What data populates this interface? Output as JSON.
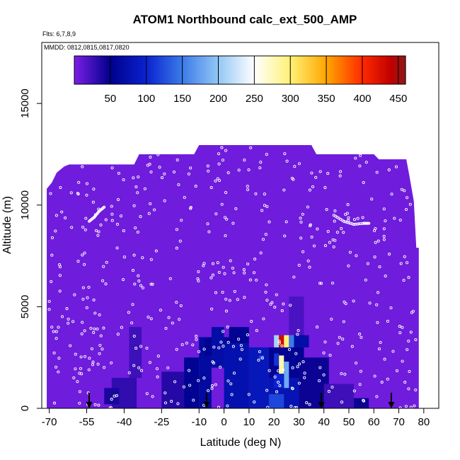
{
  "chart_data": {
    "type": "heatmap",
    "title": "ATOM1 Northbound calc_ext_500_AMP",
    "flights_note": "Flts: 6,7,8,9",
    "dates_note": "MMDD: 0812,0815,0817,0820",
    "xlabel": "Latitude (deg N)",
    "ylabel": "Altitude (m)",
    "xlim": [
      -73,
      86
    ],
    "ylim": [
      0,
      18000
    ],
    "x_ticks": [
      {
        "value": -70,
        "label": "-70"
      },
      {
        "value": -55,
        "label": "-55"
      },
      {
        "value": -40,
        "label": "-40"
      },
      {
        "value": -25,
        "label": "-25"
      },
      {
        "value": -10,
        "label": "-10"
      },
      {
        "value": 0,
        "label": "0"
      },
      {
        "value": 10,
        "label": "10"
      },
      {
        "value": 20,
        "label": "20"
      },
      {
        "value": 30,
        "label": "30"
      },
      {
        "value": 40,
        "label": "40"
      },
      {
        "value": 50,
        "label": "50"
      },
      {
        "value": 60,
        "label": "60"
      },
      {
        "value": 70,
        "label": "70"
      },
      {
        "value": 80,
        "label": "80"
      }
    ],
    "y_ticks": [
      {
        "value": 0,
        "label": "0"
      },
      {
        "value": 5000,
        "label": "5000"
      },
      {
        "value": 10000,
        "label": "10000"
      },
      {
        "value": 15000,
        "label": "15000"
      }
    ],
    "colorbar": {
      "min": 0,
      "max": 460,
      "ticks": [
        {
          "value": 50,
          "label": "50"
        },
        {
          "value": 100,
          "label": "100"
        },
        {
          "value": 150,
          "label": "150"
        },
        {
          "value": 200,
          "label": "200"
        },
        {
          "value": 250,
          "label": "250"
        },
        {
          "value": 300,
          "label": "300"
        },
        {
          "value": 350,
          "label": "350"
        },
        {
          "value": 400,
          "label": "400"
        },
        {
          "value": 450,
          "label": "450"
        }
      ],
      "stops": [
        {
          "value": 0,
          "color": "#7b1fe6"
        },
        {
          "value": 50,
          "color": "#00008b"
        },
        {
          "value": 100,
          "color": "#0a22d0"
        },
        {
          "value": 150,
          "color": "#3b7be8"
        },
        {
          "value": 200,
          "color": "#93c7f5"
        },
        {
          "value": 250,
          "color": "#ffffff"
        },
        {
          "value": 300,
          "color": "#fff176"
        },
        {
          "value": 350,
          "color": "#ffa600"
        },
        {
          "value": 400,
          "color": "#ff2a00"
        },
        {
          "value": 440,
          "color": "#c00000"
        },
        {
          "value": 460,
          "color": "#8b1a1a"
        }
      ]
    },
    "background_value": 5,
    "data_ceiling": [
      {
        "lat": -71,
        "alt": 10800
      },
      {
        "lat": -69,
        "alt": 11100
      },
      {
        "lat": -67,
        "alt": 11600
      },
      {
        "lat": -64,
        "alt": 11900
      },
      {
        "lat": -62,
        "alt": 12000
      },
      {
        "lat": -36,
        "alt": 12000
      },
      {
        "lat": -34,
        "alt": 12500
      },
      {
        "lat": -12,
        "alt": 12500
      },
      {
        "lat": -10,
        "alt": 12950
      },
      {
        "lat": 35,
        "alt": 12950
      },
      {
        "lat": 37,
        "alt": 12500
      },
      {
        "lat": 60,
        "alt": 12500
      },
      {
        "lat": 62,
        "alt": 12250
      },
      {
        "lat": 73,
        "alt": 12250
      },
      {
        "lat": 74,
        "alt": 11600
      },
      {
        "lat": 76,
        "alt": 10200
      },
      {
        "lat": 77,
        "alt": 7900
      },
      {
        "lat": 78,
        "alt": 7900
      }
    ],
    "cells": [
      {
        "lat": [
          -38,
          -33
        ],
        "alt": [
          1500,
          4000
        ],
        "value": 25
      },
      {
        "lat": [
          -45,
          -35
        ],
        "alt": [
          0,
          1500
        ],
        "value": 30
      },
      {
        "lat": [
          -48,
          -42
        ],
        "alt": [
          200,
          1000
        ],
        "value": 40
      },
      {
        "lat": [
          -25,
          -16
        ],
        "alt": [
          0,
          1800
        ],
        "value": 35
      },
      {
        "lat": [
          -16,
          -10
        ],
        "alt": [
          0,
          2500
        ],
        "value": 55
      },
      {
        "lat": [
          -10,
          -5
        ],
        "alt": [
          0,
          3500
        ],
        "value": 65
      },
      {
        "lat": [
          -8,
          2
        ],
        "alt": [
          2600,
          3500
        ],
        "value": 55
      },
      {
        "lat": [
          -5,
          0
        ],
        "alt": [
          2000,
          4000
        ],
        "value": 70
      },
      {
        "lat": [
          0,
          10
        ],
        "alt": [
          0,
          3200
        ],
        "value": 75
      },
      {
        "lat": [
          2,
          10
        ],
        "alt": [
          3200,
          4000
        ],
        "value": 55
      },
      {
        "lat": [
          10,
          18
        ],
        "alt": [
          0,
          3000
        ],
        "value": 85
      },
      {
        "lat": [
          18,
          30
        ],
        "alt": [
          0,
          1500
        ],
        "value": 80
      },
      {
        "lat": [
          18,
          32
        ],
        "alt": [
          1500,
          3000
        ],
        "value": 55
      },
      {
        "lat": [
          26,
          32
        ],
        "alt": [
          3000,
          5500
        ],
        "value": 20
      },
      {
        "lat": [
          30,
          42
        ],
        "alt": [
          0,
          2500
        ],
        "value": 45
      },
      {
        "lat": [
          28,
          34
        ],
        "alt": [
          3000,
          3600
        ],
        "value": 70
      },
      {
        "lat": [
          40,
          52
        ],
        "alt": [
          0,
          1200
        ],
        "value": 25
      },
      {
        "lat": [
          52,
          58
        ],
        "alt": [
          0,
          500
        ],
        "value": 45
      },
      {
        "lat": [
          14,
          16
        ],
        "alt": [
          2400,
          2600
        ],
        "value": 120
      },
      {
        "lat": [
          20,
          22
        ],
        "alt": [
          3000,
          3600
        ],
        "value": 210
      },
      {
        "lat": [
          22,
          24
        ],
        "alt": [
          3000,
          3600
        ],
        "value": 430
      },
      {
        "lat": [
          24,
          26
        ],
        "alt": [
          3000,
          3600
        ],
        "value": 300
      },
      {
        "lat": [
          26,
          28
        ],
        "alt": [
          3000,
          3600
        ],
        "value": 150
      },
      {
        "lat": [
          20,
          22
        ],
        "alt": [
          2100,
          2700
        ],
        "value": 110
      },
      {
        "lat": [
          22,
          24
        ],
        "alt": [
          1700,
          2600
        ],
        "value": 280
      },
      {
        "lat": [
          24,
          26
        ],
        "alt": [
          1000,
          2300
        ],
        "value": 180
      },
      {
        "lat": [
          20,
          24
        ],
        "alt": [
          1000,
          1700
        ],
        "value": 100
      },
      {
        "lat": [
          18,
          24
        ],
        "alt": [
          0,
          700
        ],
        "value": 120
      }
    ],
    "flight_track": [
      {
        "lat": -54,
        "alt": 9200
      },
      {
        "lat": -52,
        "alt": 9400
      },
      {
        "lat": -50,
        "alt": 9700
      },
      {
        "lat": -48,
        "alt": 9900
      },
      {
        "lat": 44,
        "alt": 9500
      },
      {
        "lat": 48,
        "alt": 9200
      },
      {
        "lat": 52,
        "alt": 9050
      },
      {
        "lat": 56,
        "alt": 9100
      },
      {
        "lat": 58,
        "alt": 9100
      }
    ],
    "sample_points": {
      "count": 520,
      "lat_range": [
        -70,
        78
      ],
      "alt_range": [
        0,
        13000
      ],
      "seed": 7
    },
    "marker_arrows": [
      -54,
      -7,
      39,
      67
    ]
  }
}
